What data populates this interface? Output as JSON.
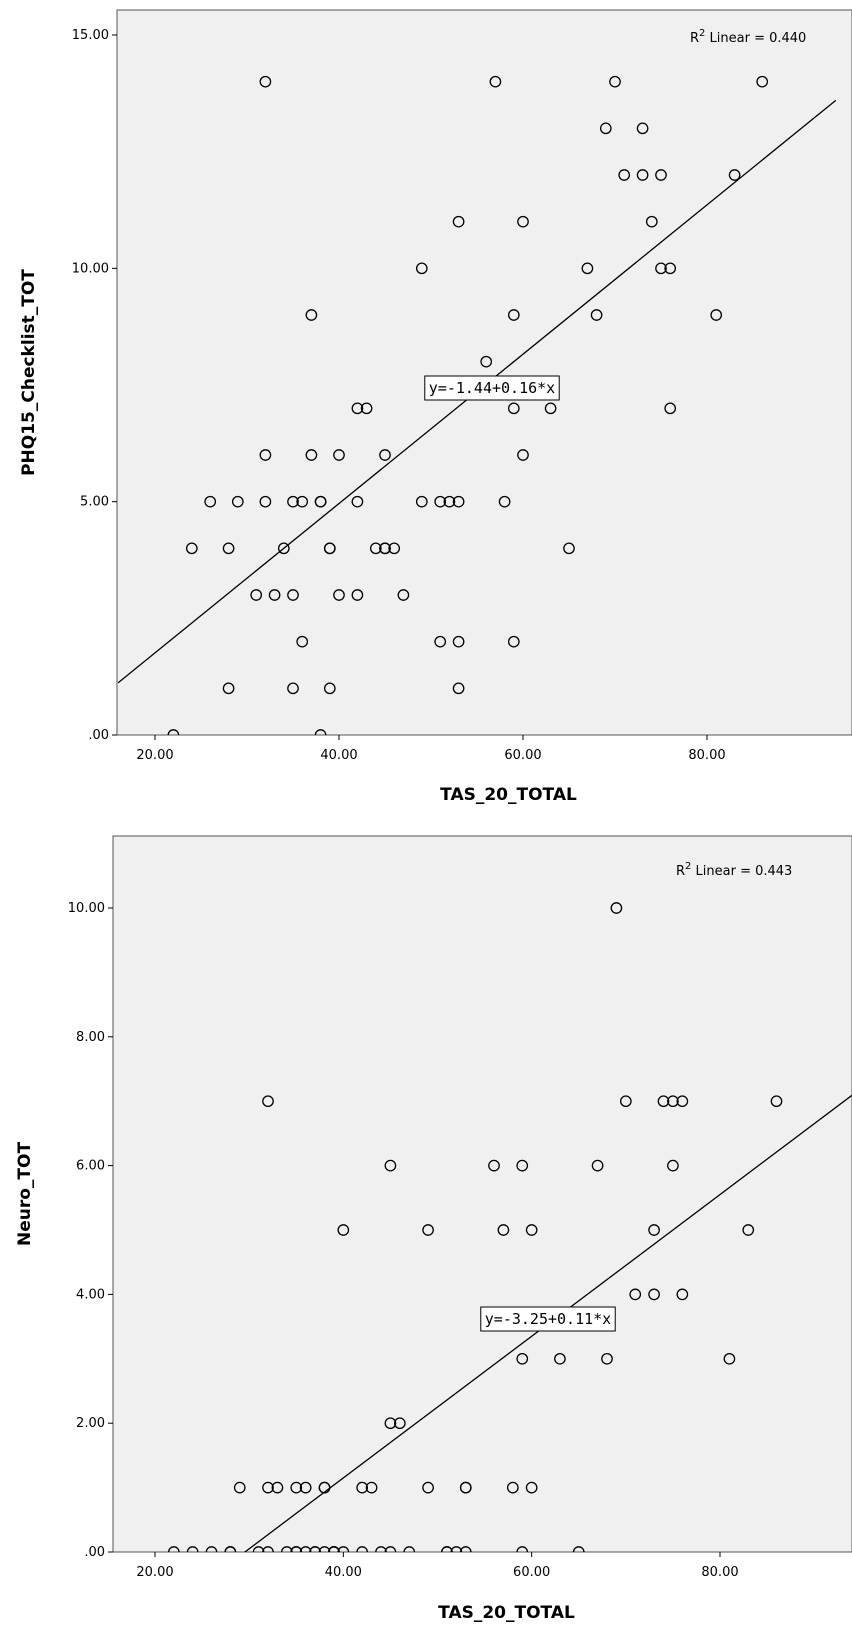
{
  "chart_data": [
    {
      "type": "scatter",
      "xlabel": "TAS_20_TOTAL",
      "ylabel": "PHQ15_Checklist_TOT",
      "xlim": [
        16,
        94
      ],
      "ylim": [
        0,
        15.6
      ],
      "xticks": [
        20,
        40,
        60,
        80
      ],
      "xtick_labels": [
        "20.00",
        "40.00",
        "60.00",
        "80.00"
      ],
      "yticks": [
        0,
        5,
        10,
        15
      ],
      "ytick_labels": [
        ".00",
        "5.00",
        "10.00",
        "15.00"
      ],
      "grid": false,
      "r2_prefix": "R",
      "r2_sup": "2",
      "r2_label": "Linear = 0.440",
      "equation": "y=-1.44+0.16*x",
      "fit": {
        "intercept": -1.44,
        "slope": 0.16
      },
      "points": [
        [
          22,
          0
        ],
        [
          24,
          4
        ],
        [
          26,
          5
        ],
        [
          28,
          1
        ],
        [
          28,
          4
        ],
        [
          29,
          5
        ],
        [
          31,
          3
        ],
        [
          32,
          5
        ],
        [
          32,
          6
        ],
        [
          32,
          14
        ],
        [
          33,
          3
        ],
        [
          34,
          4
        ],
        [
          35,
          1
        ],
        [
          35,
          3
        ],
        [
          35,
          5
        ],
        [
          36,
          2
        ],
        [
          36,
          5
        ],
        [
          37,
          6
        ],
        [
          37,
          9
        ],
        [
          38,
          0
        ],
        [
          38,
          5
        ],
        [
          38,
          5
        ],
        [
          39,
          1
        ],
        [
          39,
          4
        ],
        [
          39,
          4
        ],
        [
          40,
          3
        ],
        [
          40,
          6
        ],
        [
          42,
          3
        ],
        [
          42,
          5
        ],
        [
          42,
          7
        ],
        [
          43,
          7
        ],
        [
          44,
          4
        ],
        [
          45,
          4
        ],
        [
          45,
          4
        ],
        [
          45,
          6
        ],
        [
          46,
          4
        ],
        [
          47,
          3
        ],
        [
          49,
          5
        ],
        [
          49,
          10
        ],
        [
          51,
          2
        ],
        [
          51,
          5
        ],
        [
          52,
          5
        ],
        [
          53,
          1
        ],
        [
          53,
          2
        ],
        [
          53,
          5
        ],
        [
          53,
          11
        ],
        [
          56,
          8
        ],
        [
          57,
          14
        ],
        [
          58,
          5
        ],
        [
          59,
          2
        ],
        [
          59,
          7
        ],
        [
          59,
          9
        ],
        [
          60,
          6
        ],
        [
          60,
          11
        ],
        [
          63,
          7
        ],
        [
          65,
          4
        ],
        [
          67,
          10
        ],
        [
          68,
          9
        ],
        [
          69,
          13
        ],
        [
          70,
          14
        ],
        [
          71,
          12
        ],
        [
          73,
          12
        ],
        [
          73,
          13
        ],
        [
          74,
          11
        ],
        [
          75,
          10
        ],
        [
          75,
          12
        ],
        [
          76,
          7
        ],
        [
          76,
          10
        ],
        [
          81,
          9
        ],
        [
          83,
          12
        ],
        [
          86,
          14
        ]
      ]
    },
    {
      "type": "scatter",
      "xlabel": "TAS_20_TOTAL",
      "ylabel": "Neuro_TOT",
      "xlim": [
        16,
        94
      ],
      "ylim": [
        0,
        11.1
      ],
      "xticks": [
        20,
        40,
        60,
        80
      ],
      "xtick_labels": [
        "20.00",
        "40.00",
        "60.00",
        "80.00"
      ],
      "yticks": [
        0,
        2,
        4,
        6,
        8,
        10
      ],
      "ytick_labels": [
        ".00",
        "2.00",
        "4.00",
        "6.00",
        "8.00",
        "10.00"
      ],
      "grid": false,
      "r2_prefix": "R",
      "r2_sup": "2",
      "r2_label": "Linear = 0.443",
      "equation": "y=-3.25+0.11*x",
      "fit": {
        "intercept": -3.25,
        "slope": 0.11
      },
      "points": [
        [
          22,
          0
        ],
        [
          24,
          0
        ],
        [
          26,
          0
        ],
        [
          28,
          0
        ],
        [
          28,
          0
        ],
        [
          29,
          1
        ],
        [
          31,
          0
        ],
        [
          32,
          0
        ],
        [
          32,
          1
        ],
        [
          32,
          7
        ],
        [
          33,
          1
        ],
        [
          34,
          0
        ],
        [
          35,
          0
        ],
        [
          35,
          1
        ],
        [
          35,
          0
        ],
        [
          36,
          1
        ],
        [
          36,
          0
        ],
        [
          37,
          0
        ],
        [
          37,
          0
        ],
        [
          38,
          0
        ],
        [
          38,
          1
        ],
        [
          38,
          1
        ],
        [
          39,
          0
        ],
        [
          39,
          0
        ],
        [
          39,
          0
        ],
        [
          40,
          0
        ],
        [
          40,
          5
        ],
        [
          42,
          0
        ],
        [
          42,
          1
        ],
        [
          43,
          1
        ],
        [
          44,
          0
        ],
        [
          45,
          0
        ],
        [
          45,
          2
        ],
        [
          45,
          6
        ],
        [
          46,
          2
        ],
        [
          47,
          0
        ],
        [
          49,
          1
        ],
        [
          49,
          5
        ],
        [
          51,
          0
        ],
        [
          51,
          0
        ],
        [
          52,
          0
        ],
        [
          53,
          0
        ],
        [
          53,
          1
        ],
        [
          53,
          1
        ],
        [
          56,
          6
        ],
        [
          57,
          5
        ],
        [
          58,
          1
        ],
        [
          59,
          0
        ],
        [
          59,
          3
        ],
        [
          59,
          6
        ],
        [
          60,
          1
        ],
        [
          60,
          5
        ],
        [
          63,
          3
        ],
        [
          65,
          0
        ],
        [
          67,
          6
        ],
        [
          68,
          3
        ],
        [
          69,
          10
        ],
        [
          70,
          7
        ],
        [
          71,
          4
        ],
        [
          73,
          4
        ],
        [
          73,
          5
        ],
        [
          74,
          7
        ],
        [
          75,
          6
        ],
        [
          75,
          7
        ],
        [
          76,
          4
        ],
        [
          76,
          7
        ],
        [
          81,
          3
        ],
        [
          83,
          5
        ],
        [
          86,
          7
        ]
      ]
    }
  ]
}
